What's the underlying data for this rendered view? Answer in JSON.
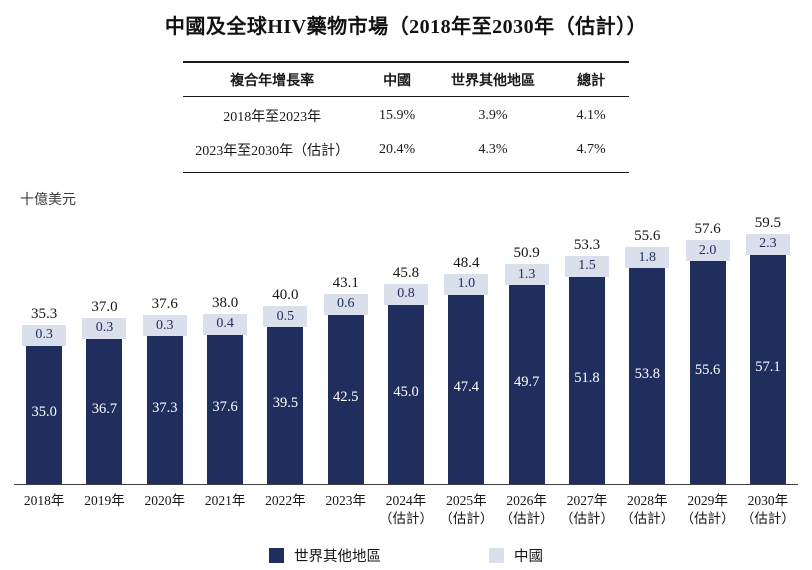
{
  "title": "中國及全球HIV藥物市場（2018年至2030年（估計））",
  "cagr_table": {
    "headers": {
      "metric": "複合年增長率",
      "china": "中國",
      "rest_of_world": "世界其他地區",
      "total": "總計"
    },
    "rows": [
      {
        "period": "2018年至2023年",
        "china": "15.9%",
        "rest_of_world": "3.9%",
        "total": "4.1%"
      },
      {
        "period": "2023年至2030年（估計）",
        "china": "20.4%",
        "rest_of_world": "4.3%",
        "total": "4.7%"
      }
    ]
  },
  "y_axis_unit": "十億美元",
  "colors": {
    "rest_of_world": "#202e5e",
    "china": "#d9e0ec",
    "bar_value_text": "#ffffff",
    "china_value_text": "#202e5e"
  },
  "chart_data": {
    "type": "bar",
    "stacked": true,
    "title": "中國及全球HIV藥物市場（2018年至2030年（估計））",
    "ylabel": "十億美元",
    "grid": false,
    "legend_position": "bottom",
    "ylim": [
      0,
      60
    ],
    "categories": [
      {
        "label": "2018年",
        "sublabel": ""
      },
      {
        "label": "2019年",
        "sublabel": ""
      },
      {
        "label": "2020年",
        "sublabel": ""
      },
      {
        "label": "2021年",
        "sublabel": ""
      },
      {
        "label": "2022年",
        "sublabel": ""
      },
      {
        "label": "2023年",
        "sublabel": ""
      },
      {
        "label": "2024年",
        "sublabel": "（估計）"
      },
      {
        "label": "2025年",
        "sublabel": "（估計）"
      },
      {
        "label": "2026年",
        "sublabel": "（估計）"
      },
      {
        "label": "2027年",
        "sublabel": "（估計）"
      },
      {
        "label": "2028年",
        "sublabel": "（估計）"
      },
      {
        "label": "2029年",
        "sublabel": "（估計）"
      },
      {
        "label": "2030年",
        "sublabel": "（估計）"
      }
    ],
    "series": [
      {
        "name": "世界其他地區",
        "color": "#202e5e",
        "values": [
          35.0,
          36.7,
          37.3,
          37.6,
          39.5,
          42.5,
          45.0,
          47.4,
          49.7,
          51.8,
          53.8,
          55.6,
          57.1
        ]
      },
      {
        "name": "中國",
        "color": "#d9e0ec",
        "values": [
          0.3,
          0.3,
          0.3,
          0.4,
          0.5,
          0.6,
          0.8,
          1.0,
          1.3,
          1.5,
          1.8,
          2.0,
          2.3
        ]
      }
    ],
    "totals": [
      35.3,
      37.0,
      37.6,
      38.0,
      40.0,
      43.1,
      45.8,
      48.4,
      50.9,
      53.3,
      55.6,
      57.6,
      59.5
    ]
  },
  "legend": {
    "items": [
      {
        "label": "世界其他地區",
        "color": "#202e5e"
      },
      {
        "label": "中國",
        "color": "#d9e0ec"
      }
    ]
  }
}
